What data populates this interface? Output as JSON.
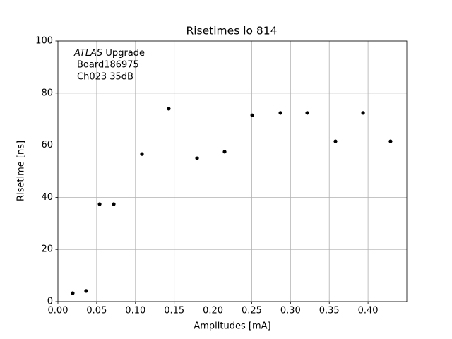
{
  "chart_data": {
    "type": "scatter",
    "title": "Risetimes lo 814",
    "x_label": "Amplitudes [mA]",
    "y_label": "Risetime [ns]",
    "annotation": [
      "ATLAS",
      "Upgrade",
      "Board186975",
      "Ch023 35dB"
    ],
    "x": [
      0.0191,
      0.0364,
      0.0538,
      0.072,
      0.1084,
      0.143,
      0.1795,
      0.215,
      0.2506,
      0.287,
      0.3216,
      0.358,
      0.3936,
      0.429
    ],
    "values": [
      3.25,
      4.1,
      37.4,
      37.4,
      56.6,
      74.0,
      55.0,
      57.5,
      71.5,
      72.4,
      72.4,
      61.5,
      72.4,
      61.5
    ],
    "color": "#000000",
    "xlim": [
      0,
      0.45
    ],
    "ylim": [
      0,
      100
    ],
    "xticks": [
      {
        "value": 0,
        "label": "0.00"
      },
      0.05,
      {
        "value": 0.1,
        "label": "0.10"
      },
      0.15,
      {
        "value": 0.2,
        "label": "0.20"
      },
      0.25,
      {
        "value": 0.3,
        "label": "0.30"
      },
      0.35,
      {
        "value": 0.4,
        "label": "0.40"
      }
    ],
    "yticks": [
      0,
      20,
      40,
      60,
      80,
      100
    ],
    "grid": true
  }
}
